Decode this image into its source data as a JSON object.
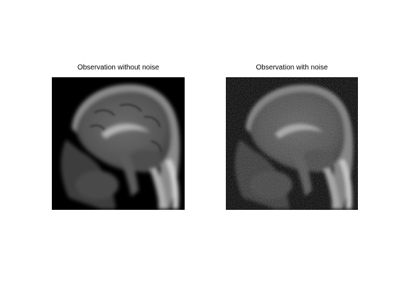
{
  "figure": {
    "panels": [
      {
        "title": "Observation without noise",
        "image_desc": "sagittal-mri-brain-clean"
      },
      {
        "title": "Observation with noise",
        "image_desc": "sagittal-mri-brain-noisy"
      }
    ]
  }
}
